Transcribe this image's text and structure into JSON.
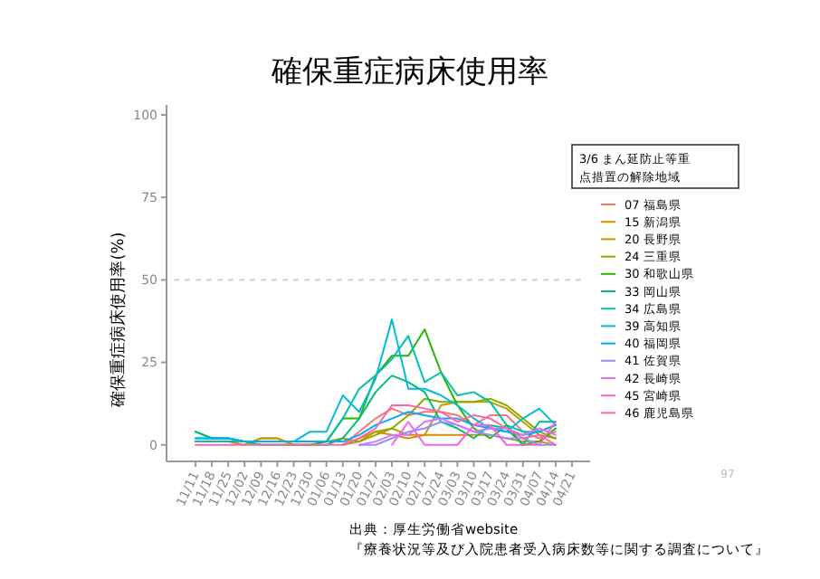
{
  "chart_data": {
    "type": "line",
    "title": "確保重症病床使用率",
    "ylabel": "確保重症病床使用率(%)",
    "legend_title": "3/6 まん延防止等重点措置の解除地域",
    "legend": "right",
    "categories": [
      "11/11",
      "11/18",
      "11/25",
      "12/02",
      "12/09",
      "12/16",
      "12/23",
      "12/30",
      "01/06",
      "01/13",
      "01/20",
      "01/27",
      "02/03",
      "02/10",
      "02/17",
      "02/24",
      "03/03",
      "03/10",
      "03/17",
      "03/24",
      "03/31",
      "04/07",
      "04/14",
      "04/21"
    ],
    "ylim": [
      -5,
      103
    ],
    "yticks": [
      0,
      25,
      50,
      75,
      100
    ],
    "ref_lines": [
      {
        "axis": "y",
        "value": 50,
        "color": "#cccccc",
        "line_style": "dashed"
      }
    ],
    "series": [
      {
        "name": "07 福島県",
        "color": "#f8766d",
        "values": [
          null,
          null,
          null,
          null,
          null,
          null,
          null,
          null,
          null,
          0,
          4,
          8,
          11,
          9,
          10,
          10,
          9,
          6,
          9,
          9,
          4,
          2,
          4,
          null
        ]
      },
      {
        "name": "15 新潟県",
        "color": "#e18a00",
        "values": [
          1,
          1,
          1,
          0,
          2,
          2,
          0,
          0,
          1,
          2,
          1,
          4,
          3,
          2,
          3,
          3,
          3,
          3,
          3,
          2,
          1,
          1,
          0,
          null
        ]
      },
      {
        "name": "20 長野県",
        "color": "#be9c00",
        "values": [
          null,
          null,
          null,
          0,
          2,
          2,
          0,
          null,
          null,
          0,
          2,
          4,
          5,
          3,
          3,
          12,
          13,
          13,
          13,
          11,
          7,
          3,
          2,
          null
        ]
      },
      {
        "name": "24 三重県",
        "color": "#8cab00",
        "values": [
          null,
          null,
          null,
          null,
          null,
          null,
          null,
          null,
          null,
          0,
          1,
          3,
          5,
          9,
          14,
          13,
          13,
          13,
          14,
          12,
          8,
          4,
          2,
          null
        ]
      },
      {
        "name": "30 和歌山県",
        "color": "#24b700",
        "values": [
          4,
          2,
          2,
          1,
          0,
          0,
          0,
          0,
          1,
          8,
          8,
          21,
          27,
          27,
          35,
          22,
          12,
          5,
          2,
          6,
          0,
          1,
          5,
          null
        ]
      },
      {
        "name": "33 岡山県",
        "color": "#00be70",
        "values": [
          4,
          2,
          2,
          1,
          0,
          0,
          0,
          0,
          0,
          2,
          8,
          16,
          21,
          19,
          16,
          7,
          5,
          2,
          6,
          5,
          0,
          7,
          7,
          null
        ]
      },
      {
        "name": "34 広島県",
        "color": "#00c1ab",
        "values": [
          1,
          1,
          1,
          1,
          1,
          1,
          1,
          1,
          1,
          8,
          17,
          21,
          26,
          33,
          19,
          22,
          15,
          16,
          13,
          6,
          4,
          4,
          6,
          null
        ]
      },
      {
        "name": "39 高知県",
        "color": "#00bbda",
        "values": [
          2,
          2,
          2,
          1,
          1,
          1,
          1,
          4,
          4,
          15,
          10,
          20,
          38,
          17,
          17,
          15,
          12,
          8,
          5,
          4,
          8,
          11,
          6,
          null
        ]
      },
      {
        "name": "40 福岡県",
        "color": "#00acfc",
        "values": [
          2,
          2,
          2,
          1,
          1,
          1,
          1,
          1,
          1,
          1,
          3,
          6,
          8,
          10,
          9,
          8,
          8,
          6,
          5,
          4,
          3,
          4,
          6,
          null
        ]
      },
      {
        "name": "41 佐賀県",
        "color": "#8b93ff",
        "values": [
          null,
          null,
          null,
          null,
          null,
          null,
          null,
          null,
          null,
          null,
          0,
          0,
          2,
          4,
          5,
          7,
          6,
          4,
          3,
          2,
          2,
          0,
          0,
          null
        ]
      },
      {
        "name": "42 長崎県",
        "color": "#d575fe",
        "values": [
          null,
          null,
          null,
          null,
          null,
          null,
          null,
          null,
          null,
          null,
          0,
          1,
          3,
          3,
          7,
          8,
          6,
          4,
          5,
          5,
          3,
          5,
          3,
          null
        ]
      },
      {
        "name": "45 宮崎県",
        "color": "#f962dd",
        "values": [
          null,
          null,
          null,
          null,
          null,
          null,
          null,
          null,
          null,
          null,
          null,
          null,
          0,
          7,
          0,
          0,
          0,
          6,
          6,
          0,
          0,
          0,
          7,
          null
        ]
      },
      {
        "name": "46 鹿児島県",
        "color": "#ff65ac",
        "values": [
          0,
          0,
          0,
          0,
          0,
          0,
          0,
          0,
          0,
          0,
          2,
          5,
          12,
          12,
          11,
          10,
          7,
          9,
          8,
          5,
          2,
          3,
          0,
          null
        ]
      }
    ],
    "annotations": [
      "97",
      "出典：厚生労働省website",
      "『療養状況等及び入院患者受入病床数等に関する調査について』"
    ]
  }
}
